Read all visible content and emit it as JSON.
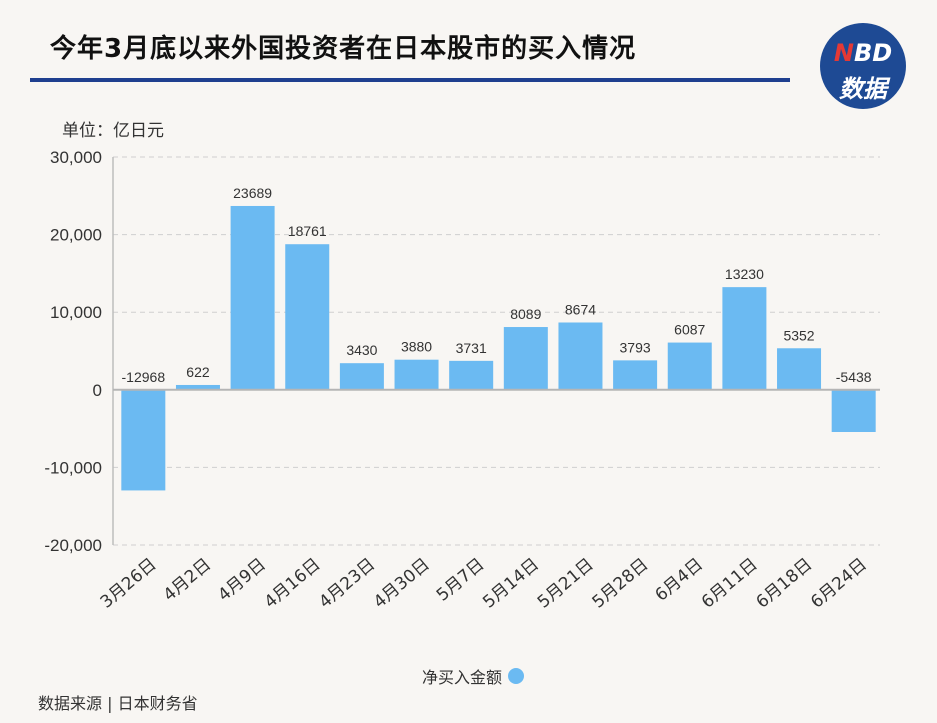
{
  "title": "今年3月底以来外国投资者在日本股市的买入情况",
  "logo": {
    "line1_n": "N",
    "line1_rest": "BD",
    "line2": "数据"
  },
  "colors": {
    "bar": "#6bbaf2",
    "title_rule": "#1f3f8f",
    "logo_bg": "#1e4a94"
  },
  "source": "数据来源 | 日本财务省",
  "chart_data": {
    "type": "bar",
    "unit_label": "单位：亿日元",
    "categories": [
      "3月26日",
      "4月2日",
      "4月9日",
      "4月16日",
      "4月23日",
      "4月30日",
      "5月7日",
      "5月14日",
      "5月21日",
      "5月28日",
      "6月4日",
      "6月11日",
      "6月18日",
      "6月24日"
    ],
    "series": [
      {
        "name": "净买入金额",
        "values": [
          -12968,
          622,
          23689,
          18761,
          3430,
          3880,
          3731,
          8089,
          8674,
          3793,
          6087,
          13230,
          5352,
          -5438
        ]
      }
    ],
    "ylim": [
      -20000,
      30000
    ],
    "yticks": [
      30000,
      20000,
      10000,
      0,
      -10000,
      -20000
    ],
    "ytick_labels": [
      "30,000",
      "20,000",
      "10,000",
      "0",
      "-10,000",
      "-20,000"
    ],
    "grid": true,
    "legend_position": "bottom-center"
  }
}
